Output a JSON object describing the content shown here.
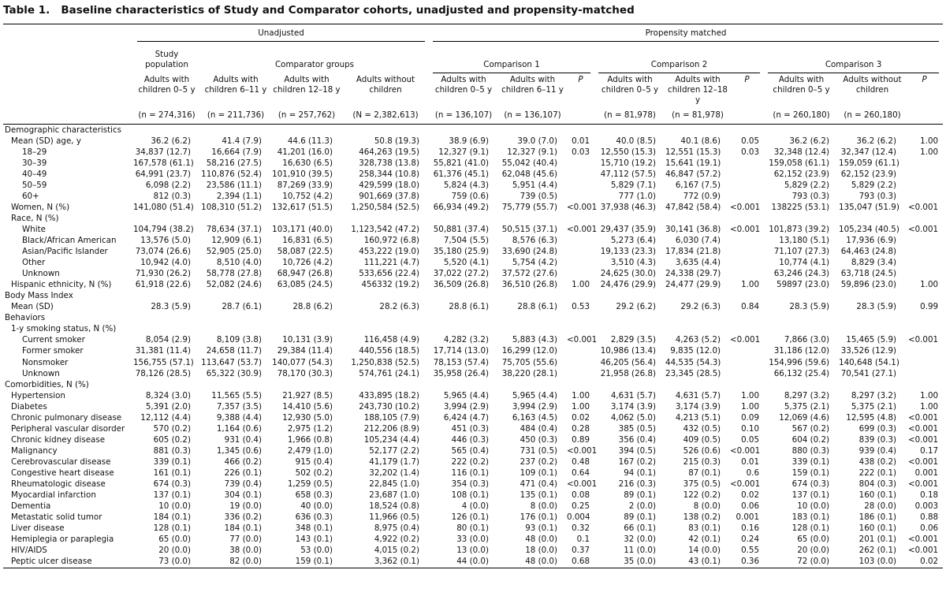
{
  "title": "Table 1.   Baseline characteristics of Study and Comparator cohorts, unadjusted and propensity-matched",
  "header": {
    "groups": [
      "Unadjusted",
      "Propensity matched"
    ],
    "subgroups": [
      "Study population",
      "Comparator groups",
      "Comparison 1",
      "Comparison 2",
      "Comparison 3"
    ],
    "columns": [
      "Adults with children 0–5 y",
      "Adults with children 6–11 y",
      "Adults with children 12–18 y",
      "Adults without children",
      "Adults with children 0–5 y",
      "Adults with children 6–11 y",
      "P",
      "Adults with children 0–5 y",
      "Adults with children 12–18 y",
      "P",
      "Adults with children 0–5 y",
      "Adults without children",
      "P"
    ],
    "n": [
      "(n = 274,316)",
      "(n = 211,736)",
      "(n = 257,762)",
      "(N = 2,382,613)",
      "(n = 136,107)",
      "(n = 136,107)",
      null,
      "(n = 81,978)",
      "(n = 81,978)",
      null,
      "(n = 260,180)",
      "(n = 260,180)",
      null
    ]
  },
  "sections": [
    {
      "title": "Demographic characteristics",
      "rows": [
        {
          "label": "Mean (SD) age, y",
          "cells": [
            "36.2 (6.2)",
            "41.4 (7.9)",
            "44.6 (11.3)",
            "50.8 (19.3)",
            "38.9 (6.9)",
            "39.0 (7.0)",
            "0.01",
            "40.0 (8.5)",
            "40.1 (8.6)",
            "0.05",
            "36.2 (6.2)",
            "36.2 (6.2)",
            "1.00"
          ],
          "rows": [
            {
              "label": "18–29",
              "cells": [
                "34,837 (12.7)",
                "16,664 (7.9)",
                "41,201 (16.0)",
                "464,263 (19.5)",
                "12,327 (9.1)",
                "12,327 (9.1)",
                "0.03",
                "12,550 (15.3)",
                "12,551 (15.3)",
                "0.03",
                "32,348 (12.4)",
                "32,347 (12.4)",
                "1.00"
              ]
            },
            {
              "label": "30–39",
              "cells": [
                "167,578 (61.1)",
                "58,216 (27.5)",
                "16,630 (6.5)",
                "328,738 (13.8)",
                "55,821 (41.0)",
                "55,042 (40.4)",
                null,
                "15,710 (19.2)",
                "15,641 (19.1)",
                null,
                "159,058 (61.1)",
                "159,059 (61.1)",
                null
              ]
            },
            {
              "label": "40–49",
              "cells": [
                "64,991 (23.7)",
                "110,876 (52.4)",
                "101,910 (39.5)",
                "258,344 (10.8)",
                "61,376 (45.1)",
                "62,048 (45.6)",
                null,
                "47,112 (57.5)",
                "46,847 (57.2)",
                null,
                "62,152 (23.9)",
                "62,152 (23.9)",
                null
              ]
            },
            {
              "label": "50–59",
              "cells": [
                "6,098 (2.2)",
                "23,586 (11.1)",
                "87,269 (33.9)",
                "429,599 (18.0)",
                "5,824 (4.3)",
                "5,951 (4.4)",
                null,
                "5,829 (7.1)",
                "6,167 (7.5)",
                null,
                "5,829 (2.2)",
                "5,829 (2.2)",
                null
              ]
            },
            {
              "label": "60+",
              "cells": [
                "812 (0.3)",
                "2,394 (1.1)",
                "10,752 (4.2)",
                "901,669 (37.8)",
                "759 (0.6)",
                "739 (0.5)",
                null,
                "777 (1.0)",
                "772 (0.9)",
                null,
                "793 (0.3)",
                "793 (0.3)",
                null
              ]
            }
          ]
        },
        {
          "label": "Women, N (%)",
          "cells": [
            "141,080 (51.4)",
            "108,310 (51.2)",
            "132,617 (51.5)",
            "1,250,584 (52.5)",
            "66,934 (49.2)",
            "75,779 (55.7)",
            "<0.001",
            "37,938 (46.3)",
            "47,842 (58.4)",
            "<0.001",
            "138225 (53.1)",
            "135,047 (51.9)",
            "<0.001"
          ]
        },
        {
          "label": "Race, N (%)",
          "rows": [
            {
              "label": "White",
              "cells": [
                "104,794 (38.2)",
                "78,634 (37.1)",
                "103,171 (40.0)",
                "1,123,542 (47.2)",
                "50,881 (37.4)",
                "50,515 (37.1)",
                "<0.001",
                "29,437 (35.9)",
                "30,141 (36.8)",
                "<0.001",
                "101,873 (39.2)",
                "105,234 (40.5)",
                "<0.001"
              ]
            },
            {
              "label": "Black/African American",
              "cells": [
                "13,576 (5.0)",
                "12,909 (6.1)",
                "16,831 (6.5)",
                "160,972 (6.8)",
                "7,504 (5.5)",
                "8,576 (6.3)",
                null,
                "5,273 (6.4)",
                "6,030 (7.4)",
                null,
                "13,180 (5.1)",
                "17,936 (6.9)",
                null
              ]
            },
            {
              "label": "Asian/Pacific Islander",
              "cells": [
                "73,074 (26.6)",
                "52,905 (25.0)",
                "58,087 (22.5)",
                "453,222 (19.0)",
                "35,180 (25.9)",
                "33,690 (24.8)",
                null,
                "19,133 (23.3)",
                "17,834 (21.8)",
                null,
                "71,107 (27.3)",
                "64,463 (24.8)",
                null
              ]
            },
            {
              "label": "Other",
              "cells": [
                "10,942 (4.0)",
                "8,510 (4.0)",
                "10,726 (4.2)",
                "111,221 (4.7)",
                "5,520 (4.1)",
                "5,754 (4.2)",
                null,
                "3,510 (4.3)",
                "3,635 (4.4)",
                null,
                "10,774 (4.1)",
                "8,829 (3.4)",
                null
              ]
            },
            {
              "label": "Unknown",
              "cells": [
                "71,930 (26.2)",
                "58,778 (27.8)",
                "68,947 (26.8)",
                "533,656 (22.4)",
                "37,022 (27.2)",
                "37,572 (27.6)",
                null,
                "24,625 (30.0)",
                "24,338 (29.7)",
                null,
                "63,246 (24.3)",
                "63,718 (24.5)",
                null
              ]
            }
          ]
        },
        {
          "label": "Hispanic ethnicity, N (%)",
          "cells": [
            "61,918 (22.6)",
            "52,082 (24.6)",
            "63,085 (24.5)",
            "456332 (19.2)",
            "36,509 (26.8)",
            "36,510 (26.8)",
            "1.00",
            "24,476 (29.9)",
            "24,477 (29.9)",
            "1.00",
            "59897 (23.0)",
            "59,896 (23.0)",
            "1.00"
          ]
        }
      ]
    },
    {
      "title": "Body Mass Index",
      "rows": [
        {
          "label": "Mean (SD)",
          "cells": [
            "28.3 (5.9)",
            "28.7 (6.1)",
            "28.8 (6.2)",
            "28.2 (6.3)",
            "28.8 (6.1)",
            "28.8 (6.1)",
            "0.53",
            "29.2 (6.2)",
            "29.2 (6.3)",
            "0.84",
            "28.3 (5.9)",
            "28.3 (5.9)",
            "0.99"
          ]
        }
      ]
    },
    {
      "title": "Behaviors",
      "rows": [
        {
          "label": "1-y smoking status, N (%)",
          "rows": [
            {
              "label": "Current smoker",
              "cells": [
                "8,054 (2.9)",
                "8,109 (3.8)",
                "10,131 (3.9)",
                "116,458 (4.9)",
                "4,282 (3.2)",
                "5,883 (4.3)",
                "<0.001",
                "2,829 (3.5)",
                "4,263 (5.2)",
                "<0.001",
                "7,866 (3.0)",
                "15,465 (5.9)",
                "<0.001"
              ]
            },
            {
              "label": "Former smoker",
              "cells": [
                "31,381 (11.4)",
                "24,658 (11.7)",
                "29,384 (11.4)",
                "440,556 (18.5)",
                "17,714 (13.0)",
                "16,299 (12.0)",
                null,
                "10,986 (13.4)",
                "9,835 (12.0)",
                null,
                "31,186 (12.0)",
                "33,526 (12.9)",
                null
              ]
            },
            {
              "label": "Nonsmoker",
              "cells": [
                "156,755 (57.1)",
                "113,647 (53.7)",
                "140,077 (54.3)",
                "1,250,838 (52.5)",
                "78,153 (57.4)",
                "75,705 (55.6)",
                null,
                "46,205 (56.4)",
                "44,535 (54.3)",
                null,
                "154,996 (59.6)",
                "140,648 (54.1)",
                null
              ]
            },
            {
              "label": "Unknown",
              "cells": [
                "78,126 (28.5)",
                "65,322 (30.9)",
                "78,170 (30.3)",
                "574,761 (24.1)",
                "35,958 (26.4)",
                "38,220 (28.1)",
                null,
                "21,958 (26.8)",
                "23,345 (28.5)",
                null,
                "66,132 (25.4)",
                "70,541 (27.1)",
                null
              ]
            }
          ]
        }
      ]
    },
    {
      "title": "Comorbidities, N (%)",
      "rows": [
        {
          "label": "Hypertension",
          "cells": [
            "8,324 (3.0)",
            "11,565 (5.5)",
            "21,927 (8.5)",
            "433,895 (18.2)",
            "5,965 (4.4)",
            "5,965 (4.4)",
            "1.00",
            "4,631 (5.7)",
            "4,631 (5.7)",
            "1.00",
            "8,297 (3.2)",
            "8,297 (3.2)",
            "1.00"
          ]
        },
        {
          "label": "Diabetes",
          "cells": [
            "5,391 (2.0)",
            "7,357 (3.5)",
            "14,410 (5.6)",
            "243,730 (10.2)",
            "3,994 (2.9)",
            "3,994 (2.9)",
            "1.00",
            "3,174 (3.9)",
            "3,174 (3.9)",
            "1.00",
            "5,375 (2.1)",
            "5,375 (2.1)",
            "1.00"
          ]
        },
        {
          "label": "Chronic pulmonary disease",
          "cells": [
            "12,112 (4.4)",
            "9,388 (4.4)",
            "12,930 (5.0)",
            "188,105 (7.9)",
            "6,424 (4.7)",
            "6,163 (4.5)",
            "0.02",
            "4,062 (5.0)",
            "4,213 (5.1)",
            "0.09",
            "12,069 (4.6)",
            "12,595 (4.8)",
            "<0.001"
          ]
        },
        {
          "label": "Peripheral vascular disorder",
          "cells": [
            "570 (0.2)",
            "1,164 (0.6)",
            "2,975 (1.2)",
            "212,206 (8.9)",
            "451 (0.3)",
            "484 (0.4)",
            "0.28",
            "385 (0.5)",
            "432 (0.5)",
            "0.10",
            "567 (0.2)",
            "699 (0.3)",
            "<0.001"
          ]
        },
        {
          "label": "Chronic kidney disease",
          "cells": [
            "605 (0.2)",
            "931 (0.4)",
            "1,966 (0.8)",
            "105,234 (4.4)",
            "446 (0.3)",
            "450 (0.3)",
            "0.89",
            "356 (0.4)",
            "409 (0.5)",
            "0.05",
            "604 (0.2)",
            "839 (0.3)",
            "<0.001"
          ]
        },
        {
          "label": "Malignancy",
          "cells": [
            "881 (0.3)",
            "1,345 (0.6)",
            "2,479 (1.0)",
            "52,177 (2.2)",
            "565 (0.4)",
            "731 (0.5)",
            "<0.001",
            "394 (0.5)",
            "526 (0.6)",
            "<0.001",
            "880 (0.3)",
            "939 (0.4)",
            "0.17"
          ]
        },
        {
          "label": "Cerebrovascular disease",
          "cells": [
            "339 (0.1)",
            "466 (0.2)",
            "915 (0.4)",
            "41,179 (1.7)",
            "222 (0.2)",
            "237 (0.2)",
            "0.48",
            "167 (0.2)",
            "215 (0.3)",
            "0.01",
            "339 (0.1)",
            "438 (0.2)",
            "<0.001"
          ]
        },
        {
          "label": "Congestive heart disease",
          "cells": [
            "161 (0.1)",
            "226 (0.1)",
            "502 (0.2)",
            "32,202 (1.4)",
            "116 (0.1)",
            "109 (0.1)",
            "0.64",
            "94 (0.1)",
            "87 (0.1)",
            "0.6",
            "159 (0.1)",
            "222 (0.1)",
            "0.001"
          ]
        },
        {
          "label": "Rheumatologic disease",
          "cells": [
            "674 (0.3)",
            "739 (0.4)",
            "1,259 (0.5)",
            "22,845 (1.0)",
            "354 (0.3)",
            "471 (0.4)",
            "<0.001",
            "216 (0.3)",
            "375 (0.5)",
            "<0.001",
            "674 (0.3)",
            "804 (0.3)",
            "<0.001"
          ]
        },
        {
          "label": "Myocardial infarction",
          "cells": [
            "137 (0.1)",
            "304 (0.1)",
            "658 (0.3)",
            "23,687 (1.0)",
            "108 (0.1)",
            "135 (0.1)",
            "0.08",
            "89 (0.1)",
            "122 (0.2)",
            "0.02",
            "137 (0.1)",
            "160 (0.1)",
            "0.18"
          ]
        },
        {
          "label": "Dementia",
          "cells": [
            "10 (0.0)",
            "19 (0.0)",
            "40 (0.0)",
            "18,524 (0.8)",
            "4 (0.0)",
            "8 (0.0)",
            "0.25",
            "2 (0.0)",
            "8 (0.0)",
            "0.06",
            "10 (0.0)",
            "28 (0.0)",
            "0.003"
          ]
        },
        {
          "label": "Metastatic solid tumor",
          "cells": [
            "184 (0.1)",
            "336 (0.2)",
            "636 (0.3)",
            "11,966 (0.5)",
            "126 (0.1)",
            "176 (0.1)",
            "0.004",
            "89 (0.1)",
            "138 (0.2)",
            "0.001",
            "183 (0.1)",
            "186 (0.1)",
            "0.88"
          ]
        },
        {
          "label": "Liver disease",
          "cells": [
            "128 (0.1)",
            "184 (0.1)",
            "348 (0.1)",
            "8,975 (0.4)",
            "80 (0.1)",
            "93 (0.1)",
            "0.32",
            "66 (0.1)",
            "83 (0.1)",
            "0.16",
            "128 (0.1)",
            "160 (0.1)",
            "0.06"
          ]
        },
        {
          "label": "Hemiplegia or paraplegia",
          "cells": [
            "65 (0.0)",
            "77 (0.0)",
            "143 (0.1)",
            "4,922 (0.2)",
            "33 (0.0)",
            "48 (0.0)",
            "0.1",
            "32 (0.0)",
            "42 (0.1)",
            "0.24",
            "65 (0.0)",
            "201 (0.1)",
            "<0.001"
          ]
        },
        {
          "label": "HIV/AIDS",
          "cells": [
            "20 (0.0)",
            "38 (0.0)",
            "53 (0.0)",
            "4,015 (0.2)",
            "13 (0.0)",
            "18 (0.0)",
            "0.37",
            "11 (0.0)",
            "14 (0.0)",
            "0.55",
            "20 (0.0)",
            "262 (0.1)",
            "<0.001"
          ]
        },
        {
          "label": "Peptic ulcer disease",
          "cells": [
            "73 (0.0)",
            "82 (0.0)",
            "159 (0.1)",
            "3,362 (0.1)",
            "44 (0.0)",
            "48 (0.0)",
            "0.68",
            "35 (0.0)",
            "43 (0.1)",
            "0.36",
            "72 (0.0)",
            "103 (0.0)",
            "0.02"
          ]
        }
      ]
    }
  ]
}
